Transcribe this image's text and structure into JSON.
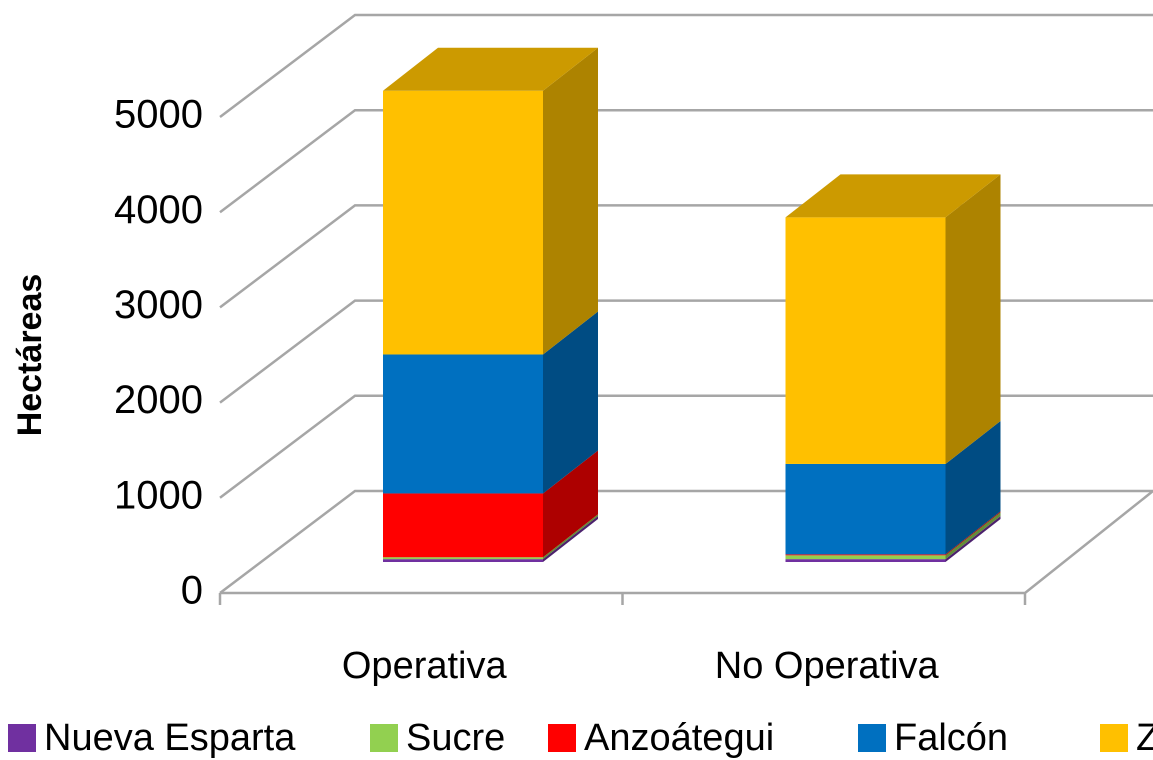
{
  "chart_data": {
    "type": "bar3d_stacked",
    "y_label": "Hectáreas",
    "categories": [
      "Operativa",
      "No Operativa"
    ],
    "series": [
      {
        "name": "Nueva Esparta",
        "color": "#7030a0",
        "values": [
          30,
          30
        ]
      },
      {
        "name": "Sucre",
        "color": "#92d050",
        "values": [
          20,
          40
        ]
      },
      {
        "name": "Anzoátegui",
        "color": "#ff0000",
        "values": [
          670,
          10
        ]
      },
      {
        "name": "Falcón",
        "color": "#0070c0",
        "values": [
          1460,
          950
        ]
      },
      {
        "name": "Zuli",
        "color": "#ffc000",
        "values": [
          2770,
          2590
        ]
      }
    ],
    "ylim": [
      0,
      5000
    ],
    "yticks": [
      0,
      1000,
      2000,
      3000,
      4000,
      5000
    ],
    "grid": true
  }
}
